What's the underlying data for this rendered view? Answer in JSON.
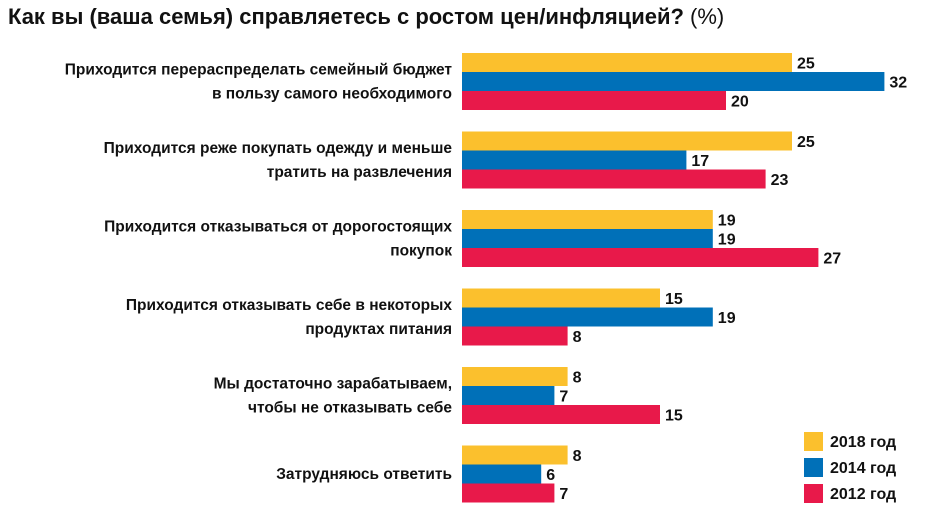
{
  "chart_data": {
    "type": "bar",
    "orientation": "horizontal",
    "title": "Как вы (ваша семья) справляетесь с ростом цен/инфляцией?",
    "title_suffix": "(%)",
    "categories": [
      [
        "Приходится перераспределать семейный бюджет",
        "в пользу самого необходимого"
      ],
      [
        "Приходится реже покупать одежду и меньше",
        "тратить на развлечения"
      ],
      [
        "Приходится отказываться от дорогостоящих",
        "покупок"
      ],
      [
        "Приходится отказывать себе в некоторых",
        "продуктах питания"
      ],
      [
        "Мы достаточно зарабатываем,",
        "чтобы не отказывать себе"
      ],
      [
        "Затрудняюсь ответить"
      ]
    ],
    "series": [
      {
        "name": "2018 год",
        "color": "#FBC02D",
        "values": [
          25,
          25,
          19,
          15,
          8,
          8
        ]
      },
      {
        "name": "2014 год",
        "color": "#0070B8",
        "values": [
          32,
          17,
          19,
          19,
          7,
          6
        ]
      },
      {
        "name": "2012 год",
        "color": "#E8194A",
        "values": [
          20,
          23,
          27,
          8,
          15,
          7
        ]
      }
    ],
    "legend_position": "bottom-right",
    "grid": false
  }
}
